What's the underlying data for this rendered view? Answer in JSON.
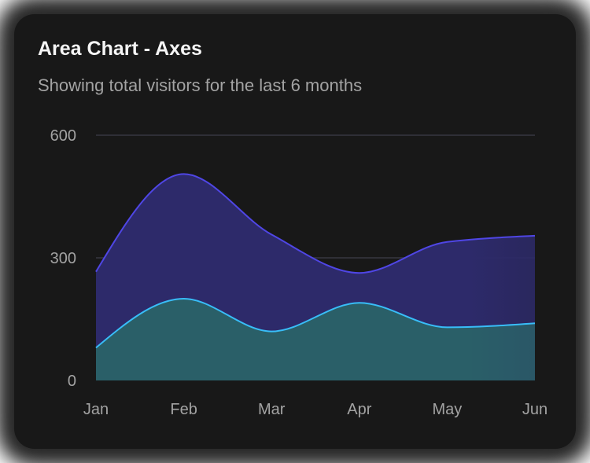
{
  "card": {
    "title": "Area Chart - Axes",
    "subtitle": "Showing total visitors for the last 6 months"
  },
  "chart_data": {
    "type": "area",
    "stacked": true,
    "grid": true,
    "categories": [
      "Jan",
      "Feb",
      "Mar",
      "Apr",
      "May",
      "Jun"
    ],
    "series": [
      {
        "key": "mobile",
        "values": [
          80,
          200,
          120,
          190,
          130,
          140
        ],
        "stroke": "#38bdf8",
        "fill": "#2a5f68"
      },
      {
        "key": "desktop",
        "values": [
          186,
          305,
          237,
          73,
          209,
          214
        ],
        "stroke": "#4f46e5",
        "fill": "#2d2a6a"
      }
    ],
    "yticks": [
      0,
      300,
      600
    ],
    "ylim": [
      0,
      600
    ]
  }
}
